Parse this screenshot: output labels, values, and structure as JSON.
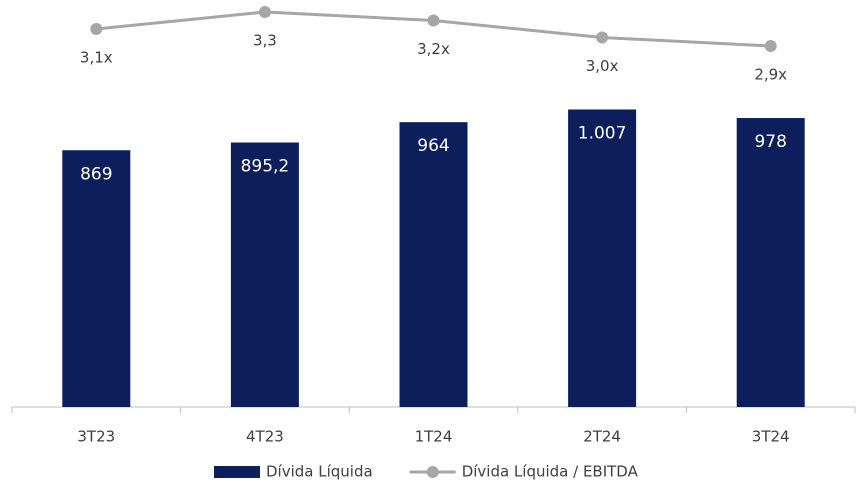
{
  "chart_data": {
    "type": "bar",
    "categories": [
      "3T23",
      "4T23",
      "1T24",
      "2T24",
      "3T24"
    ],
    "series": [
      {
        "name": "Dívida Líquida",
        "color": "#0c1f5c",
        "values": [
          869,
          895.2,
          964,
          1007,
          978
        ],
        "value_labels": [
          "869",
          "895,2",
          "964",
          "1.007",
          "978"
        ]
      },
      {
        "name": "Dívida Líquida / EBITDA",
        "type": "line",
        "axis": "y2",
        "color": "#a6a6a6",
        "values": [
          3.1,
          3.3,
          3.2,
          3.0,
          2.9
        ],
        "value_labels": [
          "3,1x",
          "3,3",
          "3,2x",
          "3,0x",
          "2,9x"
        ]
      }
    ],
    "ylim": [
      0,
      1100
    ],
    "y2lim": [
      2.5,
      3.5
    ],
    "legend": "bottom"
  }
}
